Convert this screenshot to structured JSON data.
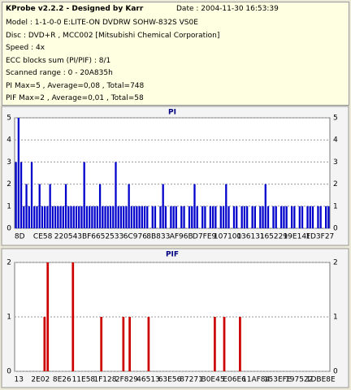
{
  "header": {
    "title": "KProbe v2.2.2 - Designed by Karr",
    "date": "Date : 2004-11-30 16:53:39",
    "lines": [
      "Model : 1-1-0-0 E:LITE-ON DVDRW SOHW-832S  VS0E",
      "Disc : DVD+R , MCC002 [Mitsubishi Chemical Corporation]",
      "Speed : 4x",
      "ECC blocks sum (PI/PIF) : 8/1",
      "Scanned range : 0 - 20A835h",
      "PI Max=5 , Average=0,08 , Total=748",
      "PIF Max=2 , Average=0,01 , Total=58"
    ]
  },
  "chart_data": [
    {
      "type": "bar",
      "title": "PI",
      "color": "#0000cc",
      "ylim": [
        0,
        5
      ],
      "yticks": [
        0,
        1,
        2,
        3,
        4,
        5
      ],
      "grid": true,
      "xtick_labels": [
        "8D",
        "CE58",
        "22054",
        "3BF66",
        "52533",
        "6C976",
        "8B833",
        "AF96B",
        "D7FE9",
        "107100",
        "136131",
        "165229",
        "19E14F",
        "1D3F27"
      ],
      "values": [
        3,
        5,
        3,
        1,
        2,
        1,
        3,
        1,
        1,
        2,
        1,
        1,
        1,
        2,
        1,
        1,
        1,
        1,
        1,
        2,
        1,
        1,
        1,
        1,
        1,
        1,
        3,
        1,
        1,
        1,
        1,
        1,
        2,
        1,
        1,
        1,
        1,
        1,
        3,
        1,
        1,
        1,
        1,
        2,
        1,
        1,
        1,
        1,
        1,
        1,
        1,
        0,
        1,
        1,
        0,
        1,
        2,
        1,
        0,
        1,
        1,
        1,
        0,
        1,
        1,
        0,
        1,
        1,
        2,
        1,
        0,
        1,
        1,
        0,
        1,
        1,
        1,
        0,
        1,
        1,
        2,
        1,
        0,
        1,
        1,
        0,
        1,
        1,
        1,
        0,
        1,
        1,
        0,
        1,
        1,
        2,
        1,
        0,
        1,
        1,
        0,
        1,
        1,
        1,
        0,
        1,
        1,
        0,
        1,
        1,
        0,
        1,
        1,
        1,
        0,
        1,
        1,
        0,
        1,
        1
      ]
    },
    {
      "type": "bar",
      "title": "PIF",
      "color": "#cc0000",
      "ylim": [
        0,
        2
      ],
      "yticks": [
        0,
        1,
        2
      ],
      "grid": true,
      "xtick_labels": [
        "13",
        "2E02",
        "8E26",
        "11E58",
        "1F128",
        "2F829",
        "46513",
        "63E56",
        "87271",
        "B0E45",
        "E06E6",
        "11AF84",
        "153EFE",
        "197522",
        "1DBE8E"
      ],
      "values": [
        0,
        0,
        0,
        0,
        0,
        0,
        0,
        0,
        0,
        1,
        2,
        0,
        0,
        0,
        0,
        0,
        0,
        0,
        2,
        0,
        0,
        0,
        0,
        0,
        0,
        0,
        0,
        1,
        0,
        0,
        0,
        0,
        0,
        0,
        1,
        0,
        1,
        0,
        0,
        0,
        0,
        0,
        1,
        0,
        0,
        0,
        0,
        0,
        0,
        0,
        0,
        0,
        0,
        0,
        0,
        0,
        0,
        0,
        0,
        0,
        0,
        0,
        0,
        1,
        0,
        0,
        1,
        0,
        0,
        0,
        0,
        1,
        0,
        0,
        0,
        0,
        0,
        0,
        0,
        0,
        0,
        0,
        0,
        0,
        0,
        0,
        0,
        0,
        0,
        0,
        0,
        0,
        0,
        0,
        0,
        0,
        0,
        0,
        0,
        0
      ]
    }
  ]
}
